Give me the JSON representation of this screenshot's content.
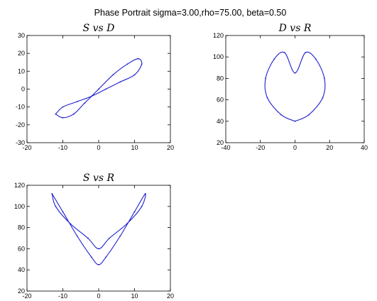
{
  "figure": {
    "suptitle": "Phase Portrait sigma=3.00,rho=75.00, beta=0.50"
  },
  "chart_data": [
    {
      "type": "line",
      "title": "S vs D",
      "xlabel": "",
      "ylabel": "",
      "xlim": [
        -20,
        20
      ],
      "ylim": [
        -30,
        30
      ],
      "xticks": [
        -20,
        -10,
        0,
        10,
        20
      ],
      "yticks": [
        -30,
        -20,
        -10,
        0,
        10,
        20,
        30
      ],
      "grid": false,
      "color": "#1f1fd0",
      "series": [
        {
          "x": [
            -12,
            -10,
            -7,
            -4,
            0,
            4,
            8,
            11,
            12,
            10,
            6,
            2,
            -2,
            -6,
            -10,
            -12
          ],
          "y": [
            -14,
            -16,
            -14,
            -8,
            0,
            8,
            14,
            17,
            14,
            8,
            4,
            0,
            -4,
            -7,
            -10,
            -14
          ]
        }
      ]
    },
    {
      "type": "line",
      "title": "D vs R",
      "xlabel": "",
      "ylabel": "",
      "xlim": [
        -40,
        40
      ],
      "ylim": [
        20,
        120
      ],
      "xticks": [
        -40,
        -20,
        0,
        20,
        40
      ],
      "yticks": [
        20,
        40,
        60,
        80,
        100,
        120
      ],
      "grid": false,
      "color": "#1f1fd0",
      "series": [
        {
          "x": [
            0,
            -8,
            -16,
            -17,
            -12,
            -6,
            0,
            6,
            12,
            17,
            16,
            8,
            0
          ],
          "y": [
            40,
            46,
            62,
            80,
            98,
            104,
            85,
            104,
            98,
            80,
            62,
            46,
            40
          ]
        }
      ]
    },
    {
      "type": "line",
      "title": "S vs R",
      "xlabel": "",
      "ylabel": "",
      "xlim": [
        -20,
        20
      ],
      "ylim": [
        20,
        120
      ],
      "xticks": [
        -20,
        -10,
        0,
        10,
        20
      ],
      "yticks": [
        20,
        40,
        60,
        80,
        100,
        120
      ],
      "grid": false,
      "color": "#1f1fd0",
      "series": [
        {
          "x": [
            -13,
            -10,
            -6,
            -2,
            0,
            2,
            6,
            10,
            13,
            12,
            8,
            3,
            0,
            -3,
            -8,
            -12,
            -13
          ],
          "y": [
            112,
            95,
            72,
            52,
            45,
            52,
            72,
            95,
            112,
            100,
            84,
            70,
            60,
            70,
            84,
            100,
            112
          ]
        }
      ]
    }
  ]
}
